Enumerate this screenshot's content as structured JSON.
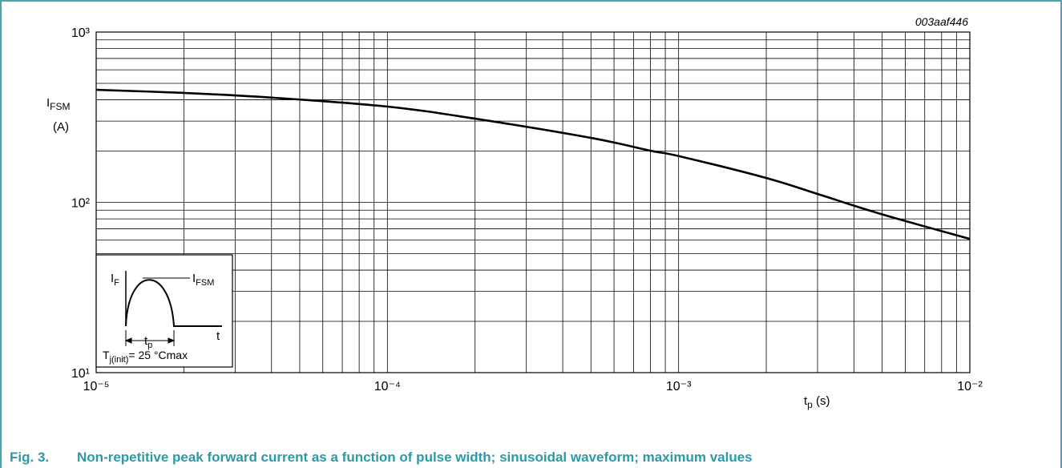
{
  "chart_data": {
    "type": "line",
    "log_x": true,
    "log_y": true,
    "grid": true,
    "code": "003aaf446",
    "y_label": {
      "main": "I",
      "sub": "FSM",
      "unit": "(A)"
    },
    "x_label": {
      "main": "t",
      "sub": "p",
      "unit": " (s)"
    },
    "caption": {
      "number": "Fig. 3.",
      "text": "Non-repetitive peak forward current as a function of pulse width; sinusoidal waveform; maximum values"
    },
    "x": [
      1e-05,
      2e-05,
      4e-05,
      0.0001,
      0.0002,
      0.0005,
      0.0008,
      0.001,
      0.002,
      0.003,
      0.005,
      0.01
    ],
    "series": [
      {
        "name": "IFSM",
        "color": "#000000",
        "values": [
          458,
          439,
          412,
          365,
          310,
          239,
          201,
          187,
          139,
          112,
          85,
          61
        ]
      }
    ],
    "xlim": [
      1e-05,
      0.01
    ],
    "xticks": [
      {
        "value": 1e-05,
        "label": "10⁻⁵"
      },
      {
        "value": 0.0001,
        "label": "10⁻⁴"
      },
      {
        "value": 0.001,
        "label": "10⁻³"
      },
      {
        "value": 0.01,
        "label": "10⁻²"
      }
    ],
    "ylim": [
      10,
      1000
    ],
    "yticks": [
      {
        "value": 10,
        "label": "10¹"
      },
      {
        "value": 100,
        "label": "10²"
      },
      {
        "value": 1000,
        "label": "10³"
      }
    ],
    "inset": {
      "if_main": "I",
      "if_sub": "F",
      "ifsm_main": "I",
      "ifsm_sub": "FSM",
      "tp_main": "t",
      "tp_sub": "p",
      "t": "t",
      "tj_main": "T",
      "tj_sub": "j(init)",
      "tj_rest": "=  25 °Cmax"
    }
  }
}
